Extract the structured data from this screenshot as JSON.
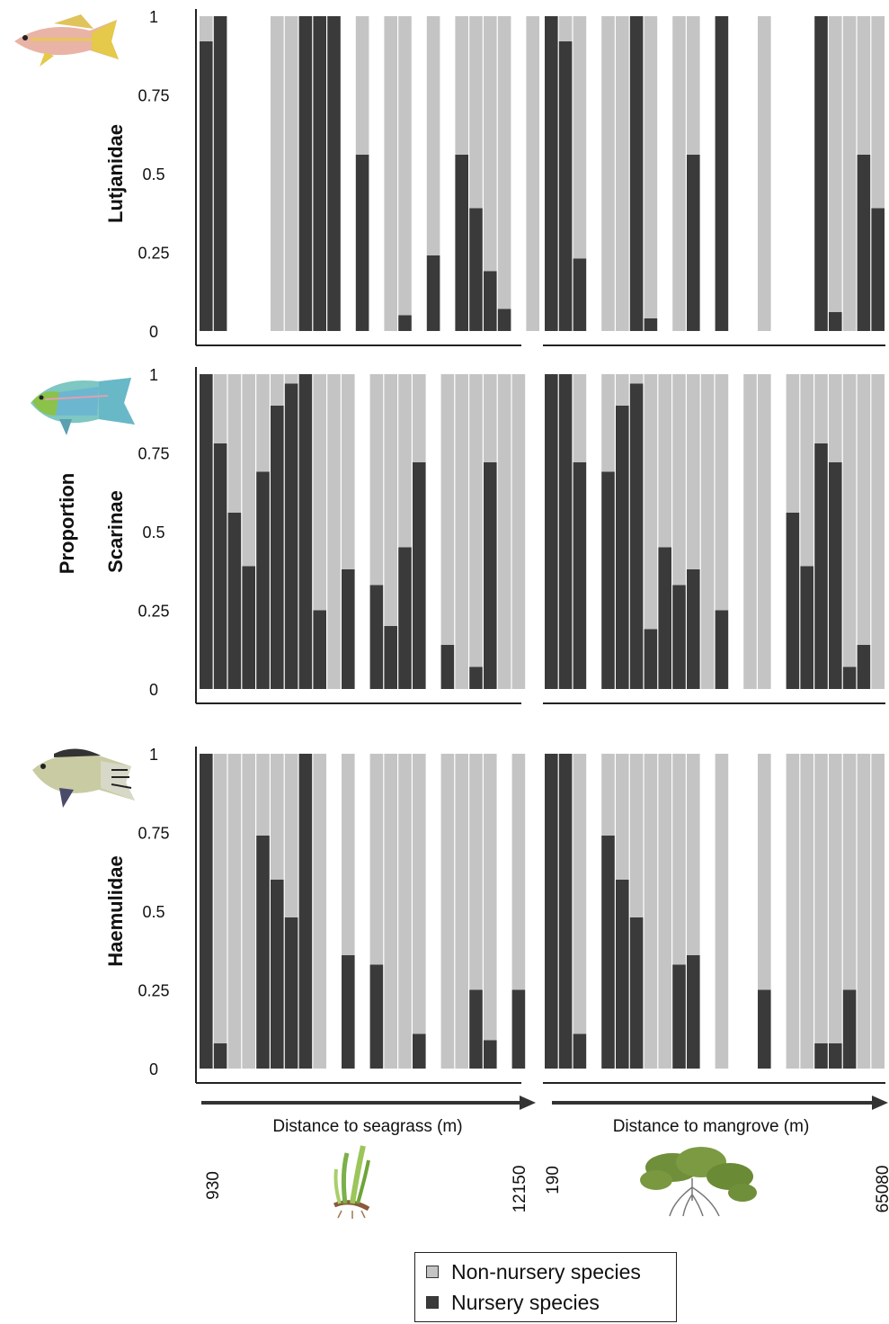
{
  "colors": {
    "nursery": "#3a3a3a",
    "non_nursery": "#c4c4c4",
    "axis": "#222222",
    "arrow": "#333333"
  },
  "y_axis_label": "Proportion",
  "x_axis": {
    "seagrass_label": "Distance to seagrass (m)",
    "mangrove_label": "Distance to mangrove (m)",
    "seagrass_min": "930",
    "seagrass_max": "12150",
    "mangrove_min": "190",
    "mangrove_max": "65080"
  },
  "legend": {
    "non_nursery": "Non-nursery species",
    "nursery": "Nursery species"
  },
  "chart_data": [
    {
      "type": "bar",
      "stacked": true,
      "family": "Lutjanidae",
      "icon": "snapper-fish-icon",
      "ylim": [
        0,
        1
      ],
      "yticks": [
        "0",
        "0.25",
        "0.5",
        "0.75",
        "1"
      ],
      "panels": [
        {
          "gradient": "seagrass",
          "series": [
            "Nursery species",
            "Non-nursery species"
          ],
          "nursery": [
            0.92,
            1,
            null,
            null,
            null,
            0,
            0,
            1,
            1,
            1,
            null,
            0.56,
            null,
            0,
            0.05,
            null,
            0.24,
            null,
            0.56,
            0.39,
            0.19,
            0.07,
            null,
            0
          ]
        },
        {
          "gradient": "mangrove",
          "series": [
            "Nursery species",
            "Non-nursery species"
          ],
          "nursery": [
            1,
            0.92,
            0.23,
            null,
            0,
            0,
            1,
            0.04,
            null,
            0,
            0.56,
            null,
            1,
            null,
            null,
            0,
            null,
            null,
            null,
            1,
            0.06,
            0,
            0.56,
            0.39
          ]
        }
      ]
    },
    {
      "type": "bar",
      "stacked": true,
      "family": "Scarinae",
      "icon": "parrotfish-icon",
      "ylim": [
        0,
        1
      ],
      "yticks": [
        "0",
        "0.25",
        "0.5",
        "0.75",
        "1"
      ],
      "panels": [
        {
          "gradient": "seagrass",
          "series": [
            "Nursery species",
            "Non-nursery species"
          ],
          "nursery": [
            1,
            0.78,
            0.56,
            0.39,
            0.69,
            0.9,
            0.97,
            1,
            0.25,
            0,
            0.38,
            null,
            0.33,
            0.2,
            0.45,
            0.72,
            null,
            0.14,
            0,
            0.07,
            0.72,
            0,
            0
          ]
        },
        {
          "gradient": "mangrove",
          "series": [
            "Nursery species",
            "Non-nursery species"
          ],
          "nursery": [
            1,
            1,
            0.72,
            null,
            0.69,
            0.9,
            0.97,
            0.19,
            0.45,
            0.33,
            0.38,
            0,
            0.25,
            null,
            0,
            0,
            null,
            0.56,
            0.39,
            0.78,
            0.72,
            0.07,
            0.14,
            0
          ]
        }
      ]
    },
    {
      "type": "bar",
      "stacked": true,
      "family": "Haemulidae",
      "icon": "grunt-fish-icon",
      "ylim": [
        0,
        1
      ],
      "yticks": [
        "0",
        "0.25",
        "0.5",
        "0.75",
        "1"
      ],
      "panels": [
        {
          "gradient": "seagrass",
          "series": [
            "Nursery species",
            "Non-nursery species"
          ],
          "nursery": [
            1,
            0.08,
            0,
            0,
            0.74,
            0.6,
            0.48,
            1,
            0,
            null,
            0.36,
            null,
            0.33,
            0,
            0,
            0.11,
            null,
            0,
            0,
            0.25,
            0.09,
            null,
            0.25
          ]
        },
        {
          "gradient": "mangrove",
          "series": [
            "Nursery species",
            "Non-nursery species"
          ],
          "nursery": [
            1,
            1,
            0.11,
            null,
            0.74,
            0.6,
            0.48,
            0,
            0,
            0.33,
            0.36,
            null,
            0,
            null,
            null,
            0.25,
            null,
            0,
            0,
            0.08,
            0.08,
            0.25,
            0,
            0
          ]
        }
      ]
    }
  ]
}
